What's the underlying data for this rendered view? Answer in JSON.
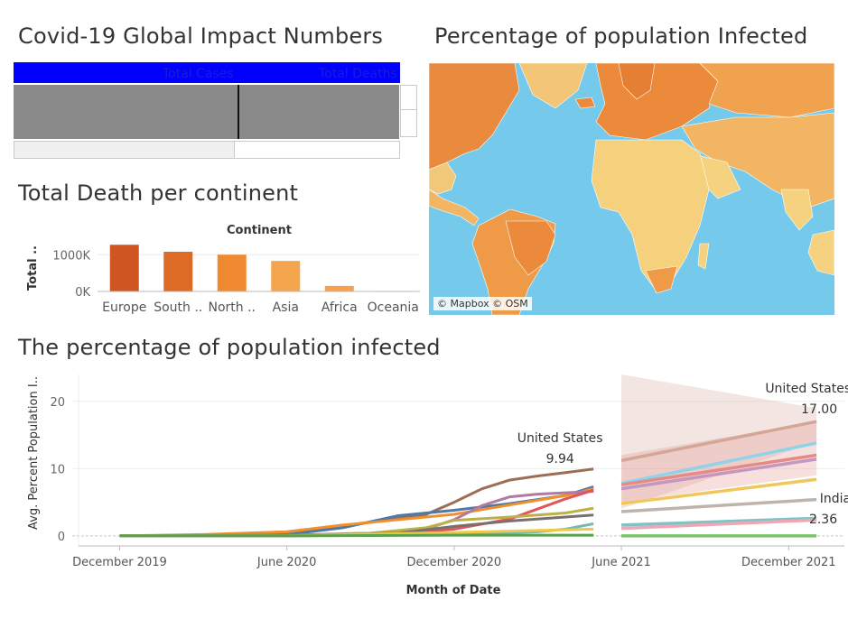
{
  "titles": {
    "global": "Covid-19 Global Impact Numbers",
    "map": "Percentage of population Infected",
    "continent": "Total Death per continent",
    "trend": "The percentage of population infected"
  },
  "table": {
    "headers": [
      "Total Cases",
      "Total Deaths"
    ]
  },
  "map": {
    "credit": "© Mapbox © OSM"
  },
  "colors": {
    "header_blue": "#0000ff",
    "cell_grey": "#8a8a8a",
    "ocean": "#75c9ea"
  },
  "chart_data": [
    {
      "type": "bar",
      "title": "Continent",
      "ylabel": "Total ..",
      "categories": [
        "Europe",
        "South ..",
        "North ..",
        "Asia",
        "Africa",
        "Oceania"
      ],
      "values": [
        1270000,
        1080000,
        1000000,
        830000,
        150000,
        10000
      ],
      "colors": [
        "#cf5623",
        "#dd6a25",
        "#ef8a30",
        "#f5a54e",
        "#f8a04a",
        "#f7c58a"
      ],
      "yticks": [
        {
          "v": 0,
          "label": "0K"
        },
        {
          "v": 1000000,
          "label": "1000K"
        }
      ],
      "ylim": [
        0,
        1350000
      ]
    },
    {
      "type": "line",
      "xlabel": "Month of Date",
      "ylabel": "Avg. Percent Population I..",
      "ylim": [
        -1.5,
        24
      ],
      "yticks": [
        0,
        10,
        20
      ],
      "xticks": [
        {
          "t": 0,
          "label": "December 2019"
        },
        {
          "t": 6,
          "label": "June 2020"
        },
        {
          "t": 12,
          "label": "December 2020"
        },
        {
          "t": 18,
          "label": "June 2021"
        },
        {
          "t": 24,
          "label": "December 2021"
        }
      ],
      "xlim": [
        -1.7,
        26
      ],
      "series": [
        {
          "color": "#9c6e55",
          "x": [
            0,
            3,
            6,
            9,
            11,
            12,
            13,
            14,
            15,
            16,
            17
          ],
          "y": [
            0,
            0.1,
            0.6,
            2,
            3.2,
            5,
            7,
            8.3,
            8.9,
            9.4,
            9.94
          ]
        },
        {
          "color": "#4e79a7",
          "x": [
            0,
            3,
            6,
            8,
            10,
            12,
            14,
            16,
            17
          ],
          "y": [
            0,
            0,
            0.2,
            1.2,
            3,
            3.8,
            4.8,
            6,
            7.3
          ]
        },
        {
          "color": "#f28e2b",
          "x": [
            0,
            3,
            6,
            8,
            10,
            12,
            14,
            16,
            17
          ],
          "y": [
            0,
            0.2,
            0.6,
            1.6,
            2.4,
            3.2,
            4.6,
            6,
            7
          ]
        },
        {
          "color": "#b07aa1",
          "x": [
            0,
            6,
            9,
            11,
            12,
            13,
            14,
            15,
            16,
            17
          ],
          "y": [
            0,
            0.1,
            0.4,
            1,
            2.4,
            4.5,
            5.8,
            6.2,
            6.4,
            6.6
          ]
        },
        {
          "color": "#e15759",
          "x": [
            0,
            6,
            10,
            12,
            14,
            16,
            17
          ],
          "y": [
            0,
            0.1,
            0.3,
            1,
            2.5,
            5.5,
            6.8
          ]
        },
        {
          "color": "#bcb04a",
          "x": [
            0,
            6,
            9,
            11,
            12,
            14,
            16,
            17
          ],
          "y": [
            0,
            0,
            0.4,
            1.2,
            2.3,
            2.8,
            3.4,
            4.1
          ]
        },
        {
          "color": "#79706e",
          "x": [
            0,
            6,
            10,
            12,
            14,
            16,
            17
          ],
          "y": [
            0,
            0,
            0.4,
            1.4,
            2.2,
            2.8,
            3.1
          ]
        },
        {
          "color": "#76b7b2",
          "x": [
            0,
            6,
            12,
            15,
            16,
            17
          ],
          "y": [
            0,
            0,
            0.2,
            0.6,
            1,
            1.8
          ]
        },
        {
          "color": "#edc948",
          "x": [
            0,
            6,
            12,
            17
          ],
          "y": [
            0,
            0,
            0.5,
            1
          ]
        },
        {
          "color": "#59a14f",
          "x": [
            0,
            6,
            12,
            17
          ],
          "y": [
            0,
            0,
            0.1,
            0.1
          ]
        }
      ],
      "forecast": [
        {
          "color": "#d4a696",
          "x": [
            18,
            25
          ],
          "y": [
            11.2,
            17.0
          ],
          "band": [
            [
              4,
              26
            ],
            [
              14,
              19
            ]
          ]
        },
        {
          "color": "#8fd3e8",
          "x": [
            18,
            25
          ],
          "y": [
            7.8,
            13.8
          ]
        },
        {
          "color": "#e48b87",
          "x": [
            18,
            25
          ],
          "y": [
            7.6,
            12
          ],
          "band": [
            [
              5,
              12
            ],
            [
              9,
              17
            ]
          ]
        },
        {
          "color": "#c597c0",
          "x": [
            18,
            25
          ],
          "y": [
            7,
            11.4
          ]
        },
        {
          "color": "#f1c75a",
          "x": [
            18,
            25
          ],
          "y": [
            4.8,
            8.4
          ]
        },
        {
          "color": "#bfb3ad",
          "x": [
            18,
            25
          ],
          "y": [
            3.6,
            5.4
          ]
        },
        {
          "color": "#7fc3c5",
          "x": [
            18,
            25
          ],
          "y": [
            1.6,
            2.6
          ]
        },
        {
          "color": "#f0a7b5",
          "x": [
            18,
            25
          ],
          "y": [
            1.1,
            2.36
          ]
        },
        {
          "color": "#79c469",
          "x": [
            18,
            25
          ],
          "y": [
            0,
            0
          ]
        }
      ],
      "annotations": [
        {
          "name": "United States",
          "value": "9.94",
          "x": 17,
          "y": 9.94
        },
        {
          "name": "United States",
          "value": "17.00",
          "x": 25,
          "y": 17.0
        },
        {
          "name": "India",
          "value": "2.36",
          "x": 25,
          "y": 2.36
        }
      ]
    }
  ]
}
